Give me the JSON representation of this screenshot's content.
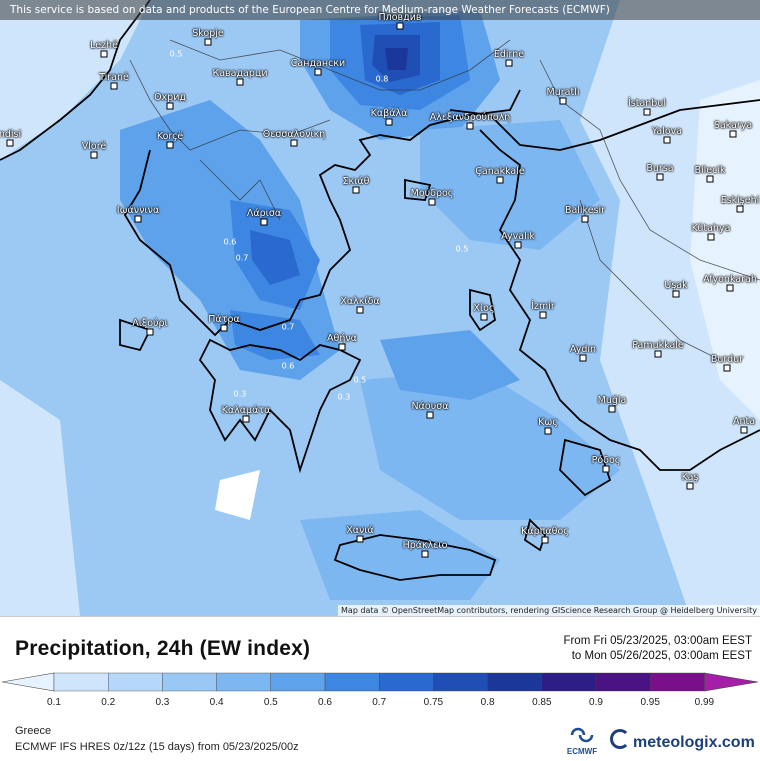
{
  "disclaimer": "This service is based on data and products of the European Centre for Medium-range Weather Forecasts (ECMWF)",
  "attribution": "Map data © OpenStreetMap contributors, rendering GIScience Research Group @ Heidelberg University",
  "title": "Precipitation, 24h (EW index)",
  "period_from": "From Fri 05/23/2025, 03:00am EEST",
  "period_to": "to Mon 05/26/2025, 03:00am EEST",
  "region": "Greece",
  "model_info": "ECMWF IFS HRES 0z/12z (15 days) from  05/23/2025/00z",
  "ecmwf_label": "ECMWF",
  "brand": "meteologix.com",
  "legend": {
    "ticks": [
      "0.1",
      "0.2",
      "0.3",
      "0.4",
      "0.5",
      "0.6",
      "0.7",
      "0.75",
      "0.8",
      "0.85",
      "0.9",
      "0.95",
      "0.99"
    ],
    "colors": [
      "#e6f2fd",
      "#cfe5fb",
      "#b5d7f8",
      "#9ac8f5",
      "#7db7f1",
      "#5ea2ec",
      "#3d86e2",
      "#2a6ad0",
      "#1f4fb4",
      "#1a3799",
      "#2c1d87",
      "#4a1282",
      "#7a0f8c",
      "#a41ea8"
    ]
  },
  "contour_labels": [
    "0.8",
    "0.7",
    "0.6",
    "0.7",
    "0.6",
    "0.5",
    "0.5",
    "0.3",
    "0.5",
    "0.3"
  ],
  "cities": [
    {
      "name": "Skopje"
    },
    {
      "name": "Lezhë"
    },
    {
      "name": "Tiranë"
    },
    {
      "name": "Пловдив"
    },
    {
      "name": "Кавадарци"
    },
    {
      "name": "Сандански"
    },
    {
      "name": "Охрид"
    },
    {
      "name": "Edirne"
    },
    {
      "name": "Muratlı"
    },
    {
      "name": "İstanbul"
    },
    {
      "name": "Καβάλα"
    },
    {
      "name": "Αλεξανδρούπολη"
    },
    {
      "name": "Θεσσαλονίκη"
    },
    {
      "name": "Korçë"
    },
    {
      "name": "Vlorë"
    },
    {
      "name": "ndisi"
    },
    {
      "name": "Yalova"
    },
    {
      "name": "Sakarya"
    },
    {
      "name": "Bursa"
    },
    {
      "name": "Bilecik"
    },
    {
      "name": "Σκιάθ"
    },
    {
      "name": "Çanakkale"
    },
    {
      "name": "Μούδρος"
    },
    {
      "name": "Eskişehi"
    },
    {
      "name": "Ιωάννινα"
    },
    {
      "name": "Balıkesir"
    },
    {
      "name": "Λάρισα"
    },
    {
      "name": "Kütahya"
    },
    {
      "name": "Ayvalık"
    },
    {
      "name": "Afyonkarah"
    },
    {
      "name": "Uşak"
    },
    {
      "name": "Χαλκίδα"
    },
    {
      "name": "Λιξούρι"
    },
    {
      "name": "Πάτρα"
    },
    {
      "name": "Χίος"
    },
    {
      "name": "İzmir"
    },
    {
      "name": "Αθήνα"
    },
    {
      "name": "Pamukkale"
    },
    {
      "name": "Aydın"
    },
    {
      "name": "Burdur"
    },
    {
      "name": "Καλαμάτα"
    },
    {
      "name": "Νάουσα"
    },
    {
      "name": "Muğla"
    },
    {
      "name": "Anta"
    },
    {
      "name": "Κως"
    },
    {
      "name": "Ρόδος"
    },
    {
      "name": "Kaş"
    },
    {
      "name": "Χανιά"
    },
    {
      "name": "Ηράκλειο"
    },
    {
      "name": "Κάρπαθος"
    }
  ]
}
